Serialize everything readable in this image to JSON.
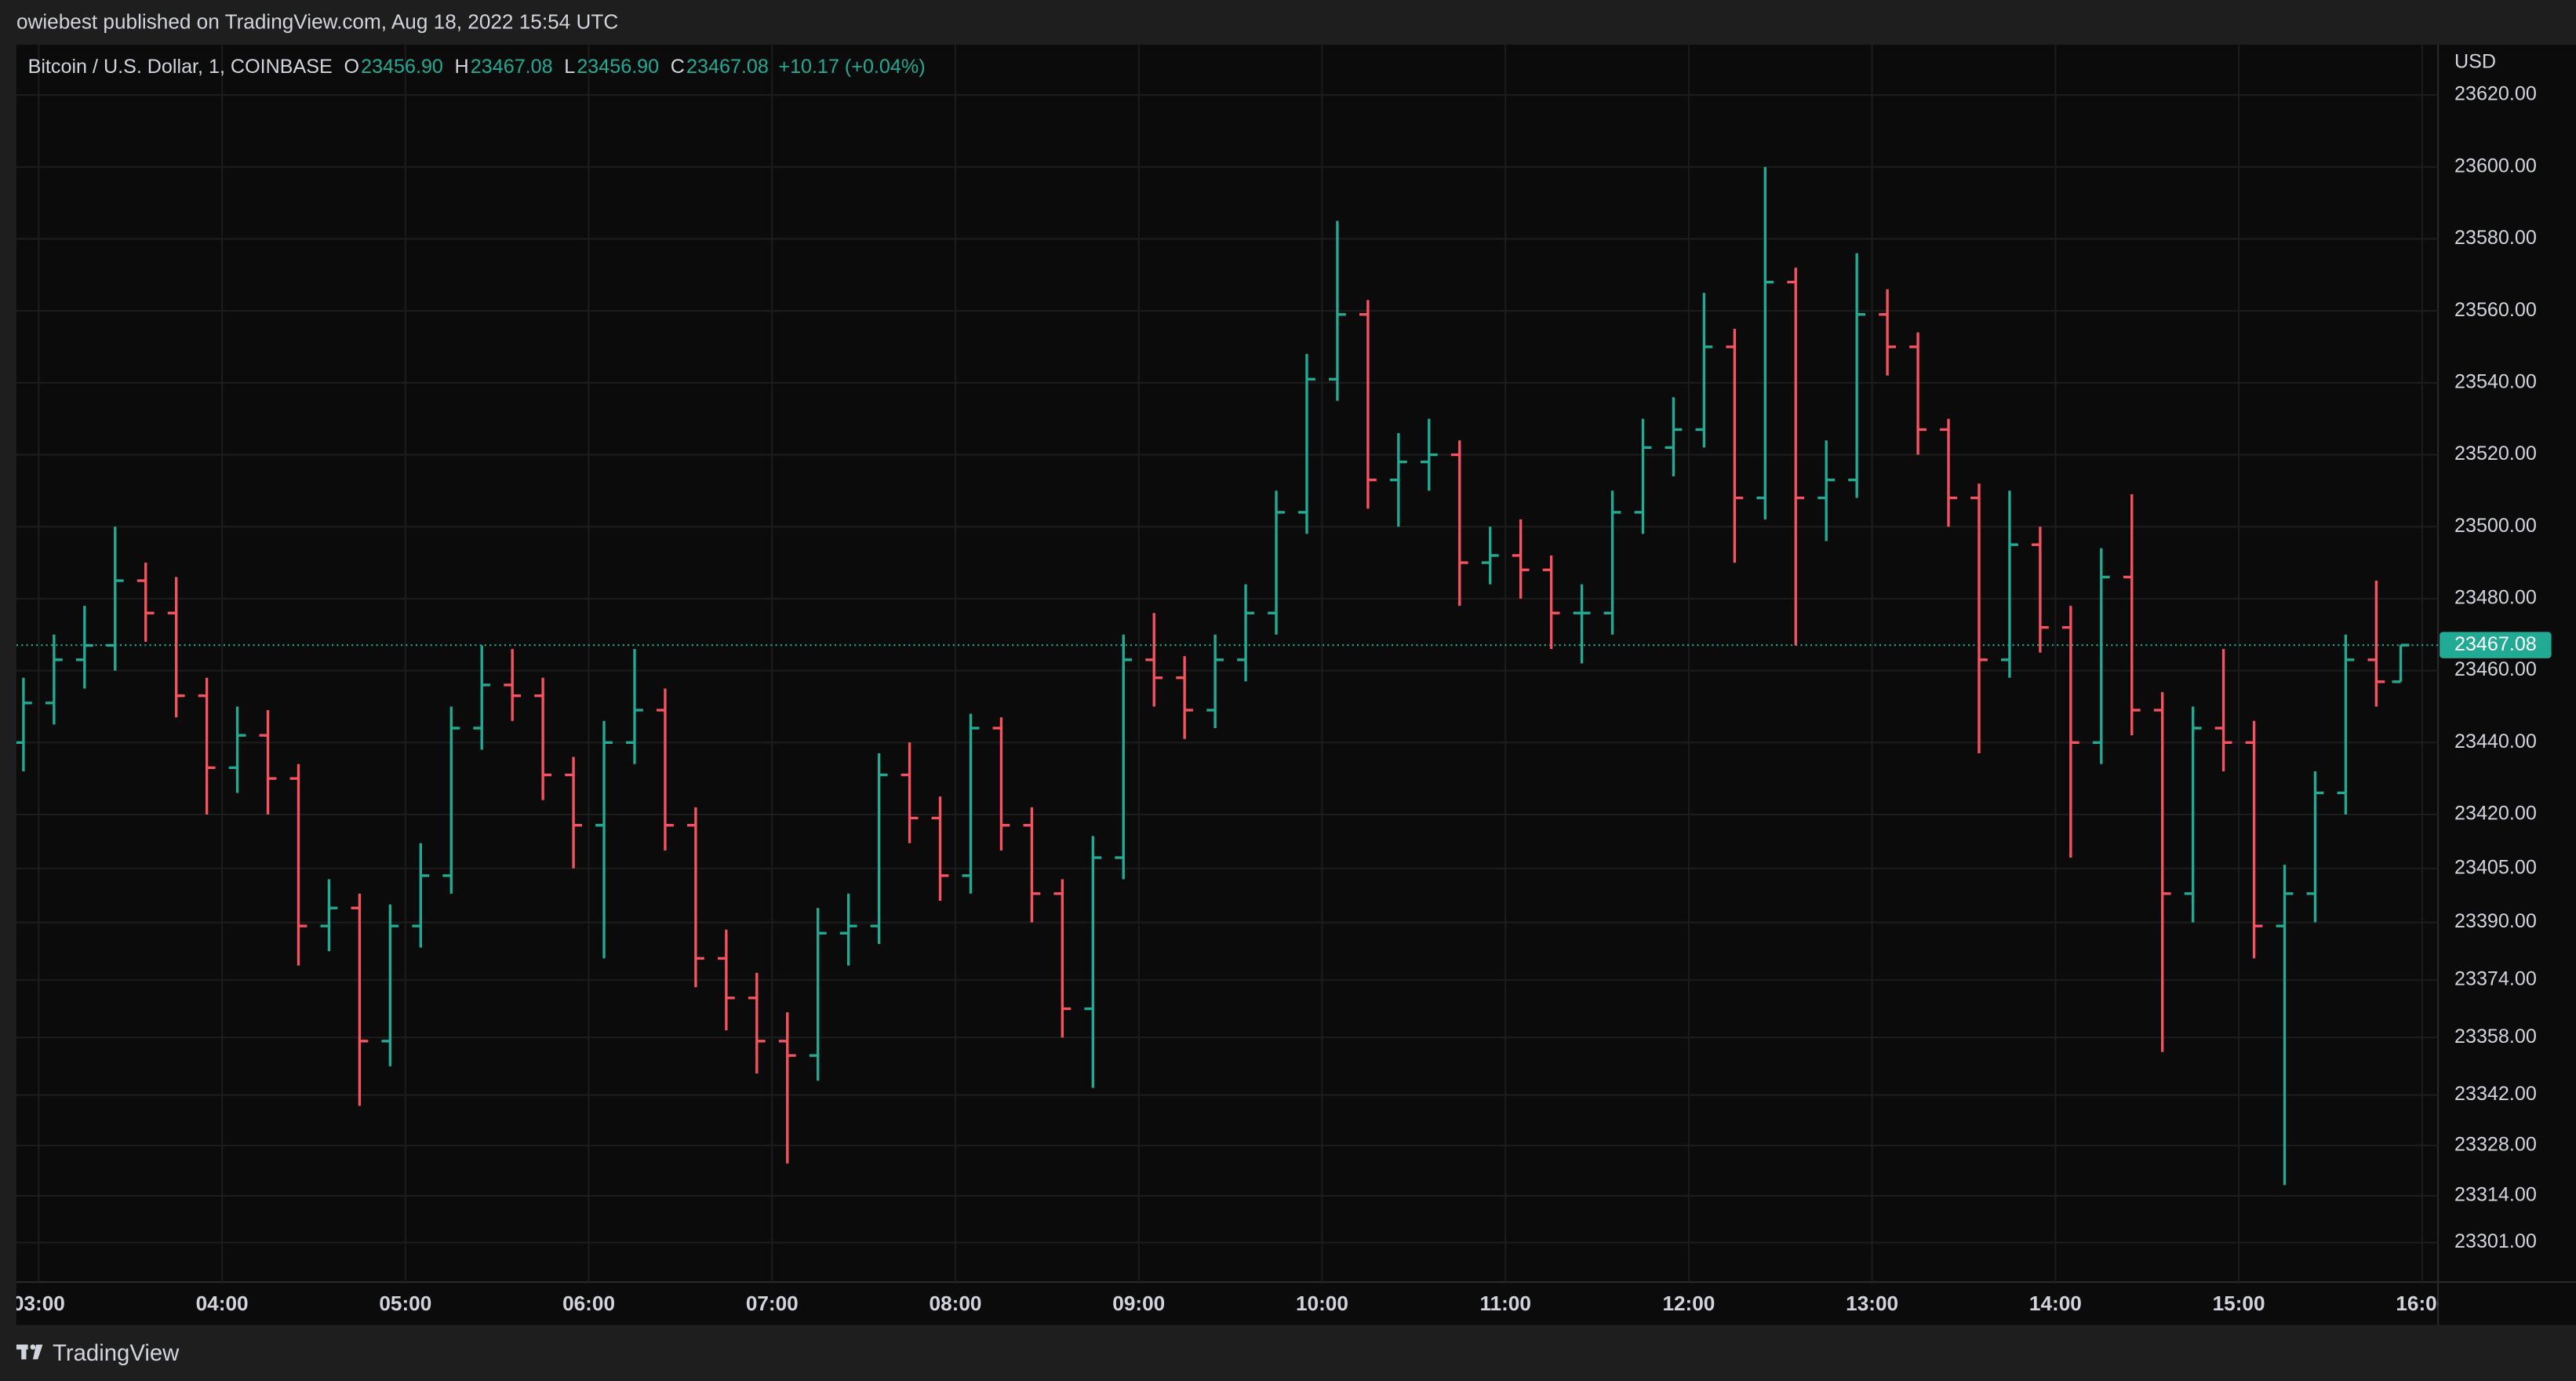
{
  "header": {
    "text": "owiebest published on TradingView.com, Aug 18, 2022 15:54 UTC"
  },
  "footer": {
    "brand": "TradingView"
  },
  "chart_data": {
    "type": "ohlc",
    "legend": {
      "symbol": "Bitcoin / U.S. Dollar, 1, COINBASE",
      "fields": [
        {
          "label": "O",
          "value": "23456.90"
        },
        {
          "label": "H",
          "value": "23467.08"
        },
        {
          "label": "L",
          "value": "23456.90"
        },
        {
          "label": "C",
          "value": "23467.08"
        }
      ],
      "change": "+10.17 (+0.04%)"
    },
    "currency": "USD",
    "x": [
      175,
      185,
      195,
      205,
      215,
      225,
      235,
      245,
      255,
      265,
      275,
      285,
      295,
      305,
      315,
      325,
      335,
      345,
      355,
      365,
      375,
      385,
      395,
      405,
      415,
      425,
      435,
      445,
      455,
      465,
      475,
      485,
      495,
      505,
      515,
      525,
      535,
      545,
      555,
      565,
      575,
      585,
      595,
      605,
      615,
      625,
      635,
      645,
      655,
      665,
      675,
      685,
      695,
      705,
      715,
      725,
      735,
      745,
      755,
      765,
      775,
      785,
      795,
      805,
      815,
      825,
      835,
      845,
      855,
      865,
      875,
      885,
      895,
      905,
      915,
      925,
      935,
      945,
      953
    ],
    "open": [
      23440,
      23451,
      23463,
      23467,
      23485,
      23476,
      23453,
      23433,
      23442,
      23430,
      23389,
      23394,
      23357,
      23389,
      23403,
      23444,
      23456,
      23453,
      23431,
      23417,
      23440,
      23449,
      23417,
      23380,
      23369,
      23357,
      23353,
      23387,
      23389,
      23431,
      23419,
      23403,
      23444,
      23417,
      23398,
      23366,
      23408,
      23463,
      23458,
      23449,
      23463,
      23476,
      23504,
      23541,
      23559,
      23513,
      23518,
      23520,
      23490,
      23492,
      23488,
      23476,
      23476,
      23504,
      23522,
      23527,
      23550,
      23508,
      23568,
      23508,
      23513,
      23559,
      23550,
      23527,
      23508,
      23463,
      23495,
      23472,
      23440,
      23486,
      23449,
      23398,
      23444,
      23440,
      23389,
      23398,
      23426,
      23463,
      23456.9
    ],
    "high": [
      23458,
      23470,
      23478,
      23500,
      23490,
      23486,
      23458,
      23450,
      23449,
      23434,
      23402,
      23398,
      23395,
      23412,
      23450,
      23467,
      23466,
      23458,
      23436,
      23446,
      23466,
      23455,
      23422,
      23388,
      23376,
      23365,
      23394,
      23398,
      23437,
      23440,
      23425,
      23448,
      23447,
      23422,
      23402,
      23414,
      23470,
      23476,
      23464,
      23470,
      23484,
      23510,
      23548,
      23585,
      23563,
      23526,
      23530,
      23524,
      23500,
      23502,
      23492,
      23484,
      23510,
      23530,
      23536,
      23565,
      23555,
      23600,
      23572,
      23524,
      23576,
      23566,
      23554,
      23530,
      23512,
      23510,
      23500,
      23478,
      23494,
      23509,
      23454,
      23450,
      23466,
      23446,
      23406,
      23432,
      23470,
      23485,
      23467.08
    ],
    "low": [
      23432,
      23445,
      23455,
      23460,
      23468,
      23447,
      23420,
      23426,
      23420,
      23378,
      23382,
      23339,
      23350,
      23383,
      23398,
      23438,
      23446,
      23424,
      23405,
      23380,
      23434,
      23410,
      23372,
      23360,
      23348,
      23323,
      23346,
      23378,
      23384,
      23412,
      23396,
      23398,
      23410,
      23390,
      23358,
      23344,
      23402,
      23450,
      23441,
      23444,
      23457,
      23470,
      23498,
      23535,
      23505,
      23500,
      23510,
      23478,
      23484,
      23480,
      23466,
      23462,
      23470,
      23498,
      23514,
      23522,
      23490,
      23502,
      23467,
      23496,
      23508,
      23542,
      23520,
      23500,
      23437,
      23458,
      23465,
      23408,
      23434,
      23442,
      23354,
      23390,
      23432,
      23380,
      23317,
      23390,
      23420,
      23450,
      23456.9
    ],
    "close": [
      23451,
      23463,
      23467,
      23485,
      23476,
      23453,
      23433,
      23442,
      23430,
      23389,
      23394,
      23357,
      23389,
      23403,
      23444,
      23456,
      23453,
      23431,
      23417,
      23440,
      23449,
      23417,
      23380,
      23369,
      23357,
      23353,
      23387,
      23389,
      23431,
      23419,
      23403,
      23444,
      23417,
      23398,
      23366,
      23408,
      23463,
      23458,
      23449,
      23463,
      23476,
      23504,
      23541,
      23559,
      23513,
      23518,
      23520,
      23490,
      23492,
      23488,
      23476,
      23476,
      23504,
      23522,
      23527,
      23550,
      23508,
      23568,
      23508,
      23513,
      23559,
      23550,
      23527,
      23508,
      23463,
      23495,
      23472,
      23440,
      23486,
      23449,
      23398,
      23444,
      23440,
      23389,
      23398,
      23426,
      23463,
      23456.9,
      23467.08
    ],
    "up_color": "#22ab94",
    "down_color": "#f7525f",
    "last_price": 23467.08,
    "xlim": [
      172.7,
      965.2
    ],
    "xticks": [
      {
        "value": 180,
        "label": "03:00"
      },
      {
        "value": 240,
        "label": "04:00"
      },
      {
        "value": 300,
        "label": "05:00"
      },
      {
        "value": 360,
        "label": "06:00"
      },
      {
        "value": 420,
        "label": "07:00"
      },
      {
        "value": 480,
        "label": "08:00"
      },
      {
        "value": 540,
        "label": "09:00"
      },
      {
        "value": 600,
        "label": "10:00"
      },
      {
        "value": 660,
        "label": "11:00"
      },
      {
        "value": 720,
        "label": "12:00"
      },
      {
        "value": 780,
        "label": "13:00"
      },
      {
        "value": 840,
        "label": "14:00"
      },
      {
        "value": 900,
        "label": "15:00"
      },
      {
        "value": 960,
        "label": "16:00"
      }
    ],
    "ylim": [
      23290,
      23634
    ],
    "yticks": [
      {
        "value": 23620,
        "label": "23620.00"
      },
      {
        "value": 23600,
        "label": "23600.00"
      },
      {
        "value": 23580,
        "label": "23580.00"
      },
      {
        "value": 23560,
        "label": "23560.00"
      },
      {
        "value": 23540,
        "label": "23540.00"
      },
      {
        "value": 23520,
        "label": "23520.00"
      },
      {
        "value": 23500,
        "label": "23500.00"
      },
      {
        "value": 23480,
        "label": "23480.00"
      },
      {
        "value": 23460,
        "label": "23460.00"
      },
      {
        "value": 23440,
        "label": "23440.00"
      },
      {
        "value": 23420,
        "label": "23420.00"
      },
      {
        "value": 23405,
        "label": "23405.00"
      },
      {
        "value": 23390,
        "label": "23390.00"
      },
      {
        "value": 23374,
        "label": "23374.00"
      },
      {
        "value": 23358,
        "label": "23358.00"
      },
      {
        "value": 23342,
        "label": "23342.00"
      },
      {
        "value": 23328,
        "label": "23328.00"
      },
      {
        "value": 23314,
        "label": "23314.00"
      },
      {
        "value": 23301,
        "label": "23301.00"
      }
    ],
    "grid": true
  }
}
